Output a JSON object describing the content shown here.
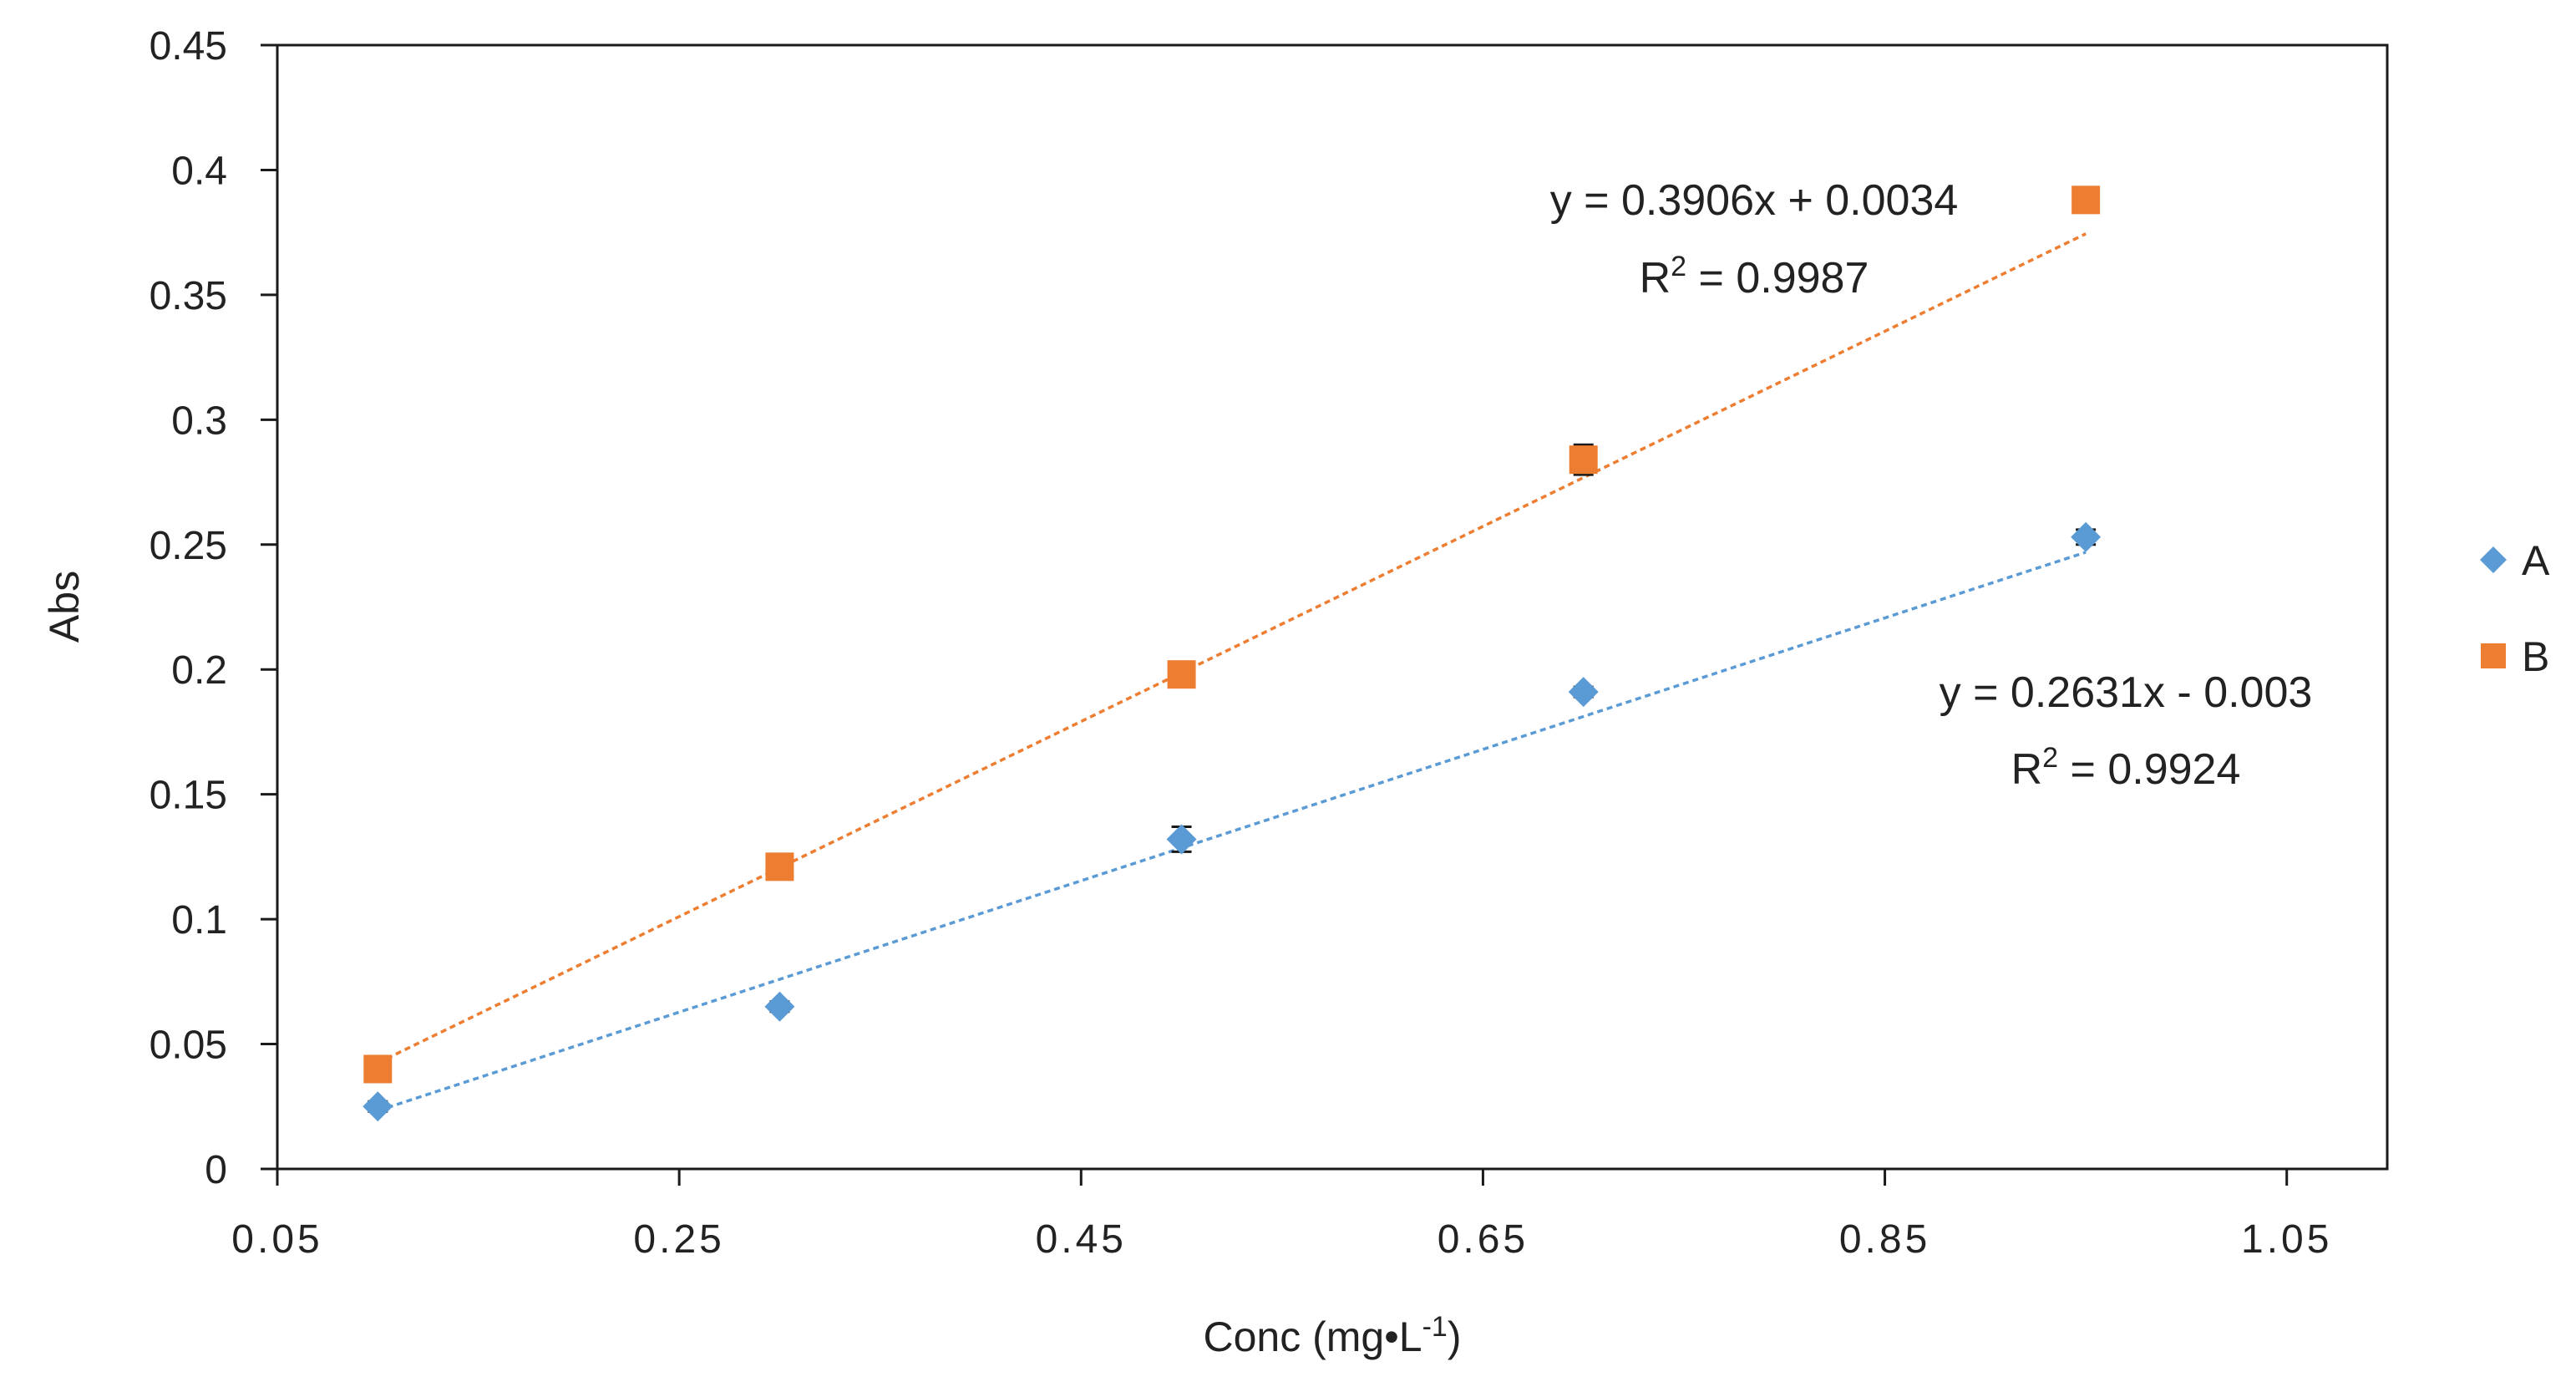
{
  "chart_data": {
    "type": "scatter",
    "title": "",
    "xlabel_main": "Conc (mg",
    "xlabel_dot": "•",
    "xlabel_L": "L",
    "xlabel_sup": "-1",
    "xlabel_close": ")",
    "ylabel": "Abs",
    "xlim": [
      0.05,
      1.1
    ],
    "ylim": [
      0,
      0.45
    ],
    "xticks": [
      0.05,
      0.25,
      0.45,
      0.65,
      0.85,
      1.05
    ],
    "xtick_labels": [
      "0.05",
      "0.25",
      "0.45",
      "0.65",
      "0.85",
      "1.05"
    ],
    "yticks": [
      0,
      0.05,
      0.1,
      0.15,
      0.2,
      0.25,
      0.3,
      0.35,
      0.4,
      0.45
    ],
    "ytick_labels": [
      "0",
      "0.05",
      "0.1",
      "0.15",
      "0.2",
      "0.25",
      "0.3",
      "0.35",
      "0.4",
      "0.45"
    ],
    "grid": false,
    "legend_position": "right",
    "series": [
      {
        "name": "A",
        "marker": "diamond",
        "color": "#5B9BD5",
        "x": [
          0.1,
          0.3,
          0.5,
          0.7,
          0.95
        ],
        "y": [
          0.025,
          0.065,
          0.132,
          0.191,
          0.253
        ],
        "err": [
          0.002,
          0.002,
          0.005,
          0.002,
          0.003
        ],
        "trendline": {
          "slope": 0.2631,
          "intercept": -0.003,
          "equation": "y = 0.2631x - 0.003",
          "r2_prefix": "R",
          "r2_sup": "2",
          "r2_value": " = 0.9924"
        }
      },
      {
        "name": "B",
        "marker": "square",
        "color": "#ED7D31",
        "x": [
          0.1,
          0.3,
          0.5,
          0.7,
          0.95
        ],
        "y": [
          0.04,
          0.121,
          0.198,
          0.284,
          0.388
        ],
        "err": [
          0.002,
          0.005,
          0.004,
          0.006,
          0.005
        ],
        "trendline": {
          "slope": 0.3906,
          "intercept": 0.0034,
          "equation": "y = 0.3906x + 0.0034",
          "r2_prefix": "R",
          "r2_sup": "2",
          "r2_value": " = 0.9987"
        }
      }
    ]
  }
}
